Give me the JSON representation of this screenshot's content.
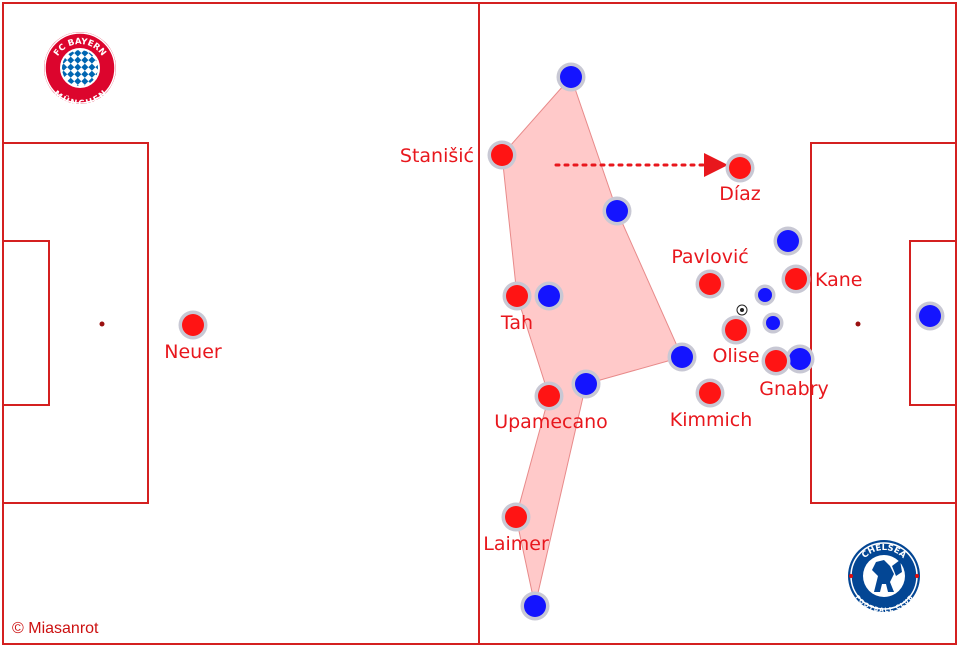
{
  "colors": {
    "pitch_line": "#d42020",
    "home_team": "#ff1414",
    "away_team": "#1414ff",
    "marker_ring": "#c8c8d4",
    "shape_fill": "#ffc9c9",
    "label": "#e8171d"
  },
  "players": {
    "home": [
      {
        "name": "Neuer"
      },
      {
        "name": "Stanišić"
      },
      {
        "name": "Tah"
      },
      {
        "name": "Upamecano"
      },
      {
        "name": "Laimer"
      },
      {
        "name": "Díaz"
      },
      {
        "name": "Pavlović"
      },
      {
        "name": "Kane"
      },
      {
        "name": "Olise"
      },
      {
        "name": "Gnabry"
      },
      {
        "name": "Kimmich"
      }
    ]
  },
  "logos": {
    "home": {
      "text_top": "FC BAYERN",
      "text_bottom": "MÜNCHEN"
    },
    "away": {
      "text_top": "CHELSEA",
      "text_bottom": "FOOTBALL CLUB"
    }
  },
  "credit": "© Miasanrot"
}
